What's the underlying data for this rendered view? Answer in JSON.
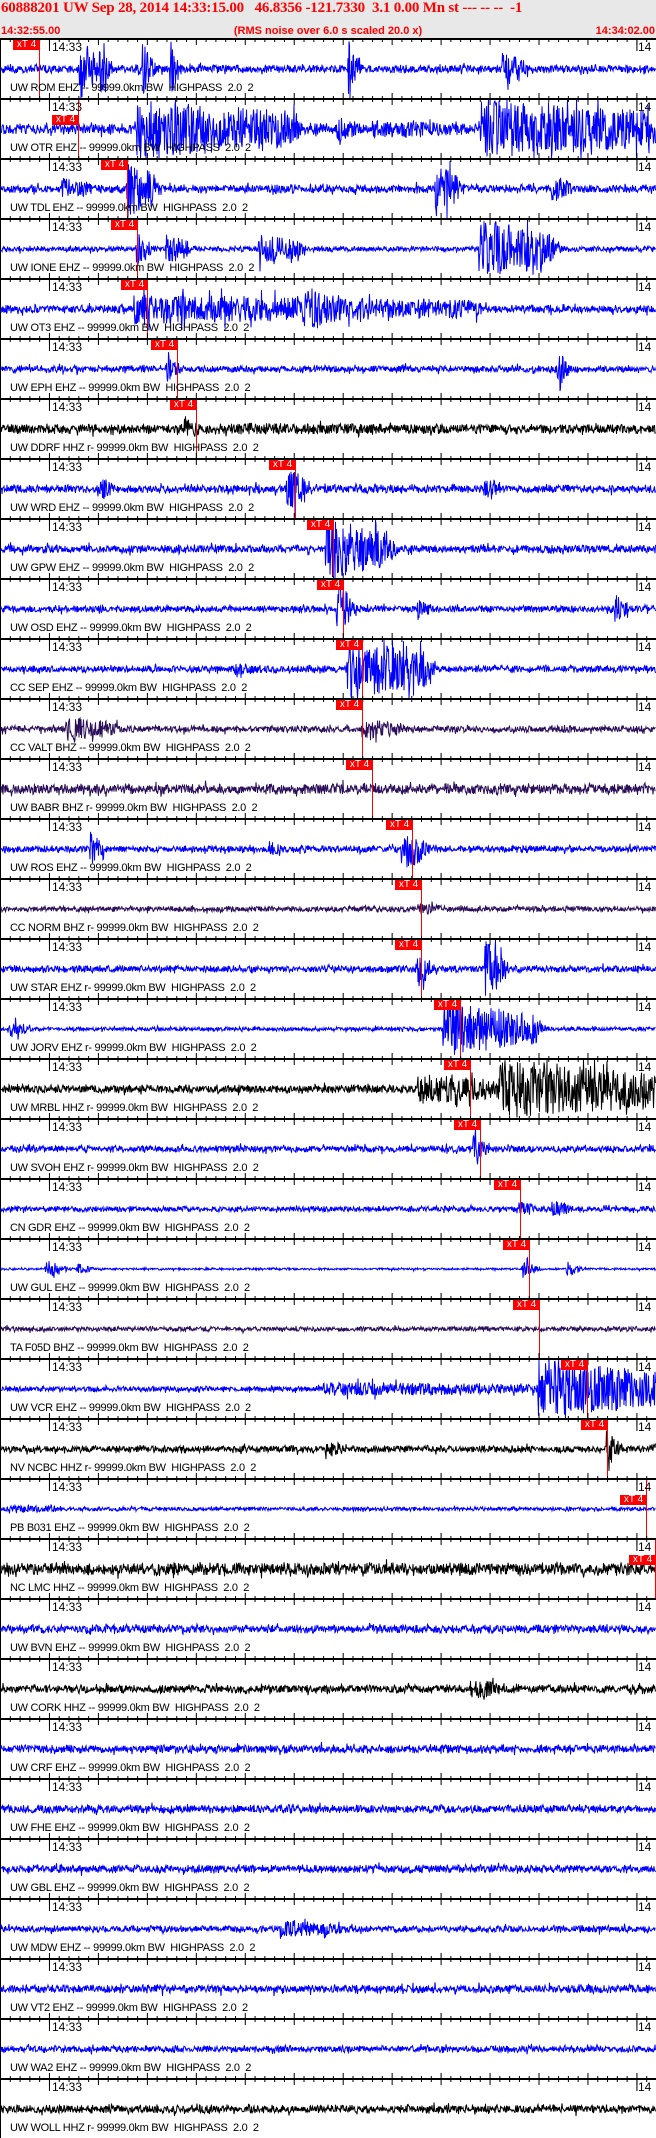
{
  "header": {
    "title": "60888201 UW Sep 28, 2014 14:33:15.00   46.8356 -121.7330  3.1 0.00 Mn st --- -- --  -1",
    "start_time": "14:32:55.00",
    "rms_note": "(RMS noise over 6.0 s scaled 20.0 x)",
    "end_time": "14:34:02.00"
  },
  "chart_data": {
    "type": "line",
    "xlim": [
      "14:32:55.00",
      "14:34:02.00"
    ],
    "tick_label": "14:33",
    "tick_label_right": "14",
    "pick_label": "xT 4",
    "grid": false,
    "colors": {
      "EHZ": "#0000ff",
      "HHZ": "#000000",
      "BHZ": "#2b0f5a",
      "pick": "#ff0000",
      "axis": "#000000"
    },
    "traces": [
      {
        "label": "UW ROM EHZ -- 99999.0km BW  HIGHPASS  2.0  2",
        "channel": "EHZ",
        "pick": "14:32:59.0",
        "noise": 0.12,
        "events": [
          [
            "14:33:03.2",
            1.5,
            1
          ],
          [
            "14:33:05.2",
            0.5,
            0.9
          ],
          [
            "14:33:09.6",
            0.6,
            1
          ],
          [
            "14:33:12.4",
            0.4,
            1
          ],
          [
            "14:33:30.6",
            0.4,
            1
          ],
          [
            "14:33:46.3",
            2,
            0.6
          ]
        ]
      },
      {
        "label": "UW OTR EHZ -- 99999.0km BW  HIGHPASS  2.0  2",
        "channel": "EHZ",
        "pick": "14:33:03.0",
        "noise": 0.15,
        "events": [
          [
            "14:33:09.0",
            16,
            1
          ],
          [
            "14:33:29.5",
            1.5,
            0.6
          ],
          [
            "14:33:33.0",
            10,
            0.3
          ],
          [
            "14:33:44.0",
            18,
            1
          ]
        ]
      },
      {
        "label": "UW TDL EHZ -- 99999.0km BW  HIGHPASS  2.0  2",
        "channel": "EHZ",
        "pick": "14:33:08.0",
        "noise": 0.12,
        "events": [
          [
            "14:33:01.4",
            2.6,
            0.4
          ],
          [
            "14:33:08.0",
            2.5,
            1
          ],
          [
            "14:33:39.5",
            2,
            0.9
          ],
          [
            "14:33:51.4",
            1.5,
            0.5
          ]
        ]
      },
      {
        "label": "UW IONE EHZ -- 99999.0km BW  HIGHPASS  2.0  2",
        "channel": "EHZ",
        "pick": "14:33:09.0",
        "noise": 0.08,
        "events": [
          [
            "14:33:09.0",
            1,
            0.6
          ],
          [
            "14:33:12.0",
            2,
            0.5
          ],
          [
            "14:33:21.5",
            4,
            0.5
          ],
          [
            "14:33:44.0",
            7,
            1
          ]
        ]
      },
      {
        "label": "UW OT3 EHZ -- 99999.0km BW  HIGHPASS  2.0  2",
        "channel": "EHZ",
        "pick": "14:33:10.0",
        "noise": 0.12,
        "events": [
          [
            "14:33:08.7",
            35,
            0.5
          ],
          [
            "14:33:26.0",
            3,
            0.8
          ]
        ]
      },
      {
        "label": "UW EPH EHZ -- 99999.0km BW  HIGHPASS  2.0  2",
        "channel": "EHZ",
        "pick": "14:33:13.1",
        "noise": 0.1,
        "events": [
          [
            "14:33:12.1",
            0.3,
            0.7
          ],
          [
            "14:33:52.0",
            0.3,
            1
          ]
        ]
      },
      {
        "label": "UW DDRF HHZ r- 99999.0km BW  HIGHPASS  2.0  2",
        "channel": "HHZ",
        "pick": "14:33:15.0",
        "noise": 0.14,
        "events": [
          [
            "14:33:13.8",
            1.5,
            0.35
          ],
          [
            "14:33:17.0",
            40,
            0.2
          ]
        ]
      },
      {
        "label": "UW WRD EHZ -- 99999.0km BW  HIGHPASS  2.0  2",
        "channel": "EHZ",
        "pick": "14:33:25.1",
        "noise": 0.12,
        "events": [
          [
            "14:33:05.3",
            1,
            0.4
          ],
          [
            "14:33:24.3",
            1.5,
            0.8
          ],
          [
            "14:33:44.5",
            1,
            0.5
          ]
        ]
      },
      {
        "label": "UW GPW EHZ -- 99999.0km BW  HIGHPASS  2.0  2",
        "channel": "EHZ",
        "pick": "14:33:29.0",
        "noise": 0.12,
        "events": [
          [
            "14:33:28.3",
            6.4,
            1
          ]
        ]
      },
      {
        "label": "UW OSD EHZ -- 99999.0km BW  HIGHPASS  2.0  2",
        "channel": "EHZ",
        "pick": "14:33:30.0",
        "noise": 0.1,
        "events": [
          [
            "14:33:29.4",
            1,
            1
          ],
          [
            "14:33:37.7",
            1,
            0.4
          ],
          [
            "14:33:57.8",
            1,
            0.5
          ]
        ]
      },
      {
        "label": "CC SEP EHZ -- 99999.0km BW  HIGHPASS  2.0  2",
        "channel": "EHZ",
        "pick": "14:33:32.0",
        "noise": 0.1,
        "events": [
          [
            "14:33:19.0",
            4,
            0.2
          ],
          [
            "14:33:30.5",
            8,
            1
          ]
        ]
      },
      {
        "label": "CC VALT BHZ -- 99999.0km BW  HIGHPASS  2.0  2",
        "channel": "BHZ",
        "pick": "14:33:32.0",
        "noise": 0.1,
        "events": [
          [
            "14:33:01.8",
            5,
            0.4
          ],
          [
            "14:33:32.0",
            4,
            0.35
          ]
        ]
      },
      {
        "label": "UW BABR BHZ r- 99999.0km BW  HIGHPASS  2.0  2",
        "channel": "BHZ",
        "pick": "14:33:33.0",
        "noise": 0.15,
        "events": []
      },
      {
        "label": "UW ROS EHZ -- 99999.0km BW  HIGHPASS  2.0  2",
        "channel": "EHZ",
        "pick": "14:33:37.1",
        "noise": 0.1,
        "events": [
          [
            "14:33:04.2",
            1,
            0.6
          ],
          [
            "14:33:22.4",
            1,
            0.3
          ],
          [
            "14:33:36.0",
            2,
            0.8
          ]
        ]
      },
      {
        "label": "CC NORM BHZ r- 99999.0km BW  HIGHPASS  2.0  2",
        "channel": "BHZ",
        "pick": "14:33:38.0",
        "noise": 0.08,
        "events": [
          [
            "14:33:37.7",
            3,
            0.2
          ]
        ]
      },
      {
        "label": "UW STAR EHZ r- 99999.0km BW  HIGHPASS  2.0  2",
        "channel": "EHZ",
        "pick": "14:33:38.0",
        "noise": 0.1,
        "events": [
          [
            "14:33:37.7",
            1,
            0.6
          ],
          [
            "14:33:44.6",
            1.5,
            1
          ]
        ]
      },
      {
        "label": "UW JORV EHZ r- 99999.0km BW  HIGHPASS  2.0  2",
        "channel": "EHZ",
        "pick": "14:33:42.0",
        "noise": 0.06,
        "events": [
          [
            "14:32:56.0",
            1.5,
            0.3
          ],
          [
            "14:33:40.3",
            9.4,
            0.9
          ]
        ]
      },
      {
        "label": "UW MRBL HHZ r- 99999.0km BW  HIGHPASS  2.0  2",
        "channel": "HHZ",
        "pick": "14:33:43.0",
        "noise": 0.12,
        "events": [
          [
            "14:33:37.7",
            9,
            0.5
          ],
          [
            "14:33:46.0",
            16,
            1
          ]
        ]
      },
      {
        "label": "UW SVOH EHZ r- 99999.0km BW  HIGHPASS  2.0  2",
        "channel": "EHZ",
        "pick": "14:33:44.0",
        "noise": 0.1,
        "events": [
          [
            "14:33:43.4",
            0.5,
            0.8
          ]
        ]
      },
      {
        "label": "CN GDR EHZ -- 99999.0km BW  HIGHPASS  2.0  2",
        "channel": "EHZ",
        "pick": "14:33:48.1",
        "noise": 0.08,
        "events": [
          [
            "14:33:48.0",
            2,
            0.25
          ],
          [
            "14:33:51.4",
            1.5,
            0.3
          ]
        ]
      },
      {
        "label": "UW GUL EHZ -- 99999.0km BW  HIGHPASS  2.0  2",
        "channel": "EHZ",
        "pick": "14:33:49.0",
        "noise": 0.03,
        "events": [
          [
            "14:32:59.7",
            1.5,
            0.3
          ],
          [
            "14:33:02.9",
            1,
            0.2
          ],
          [
            "14:33:48.4",
            1,
            0.3
          ],
          [
            "14:33:52.9",
            1,
            0.25
          ]
        ]
      },
      {
        "label": "TA F05D BHZ -- 99999.0km BW  HIGHPASS  2.0  2",
        "channel": "BHZ",
        "pick": "14:33:50.0",
        "noise": 0.07,
        "events": []
      },
      {
        "label": "UW VCR EHZ -- 99999.0km BW  HIGHPASS  2.0  2",
        "channel": "EHZ",
        "pick": "14:33:55.0",
        "noise": 0.08,
        "events": [
          [
            "14:33:28.0",
            22,
            0.25
          ],
          [
            "14:33:50.0",
            12,
            1
          ]
        ]
      },
      {
        "label": "NV NCBC HHZ r- 99999.0km BW  HIGHPASS  2.0  2",
        "channel": "HHZ",
        "pick": "14:33:57.0",
        "noise": 0.1,
        "events": [
          [
            "14:33:28.3",
            1.5,
            0.3
          ],
          [
            "14:33:57.0",
            0.3,
            1
          ]
        ]
      },
      {
        "label": "PB B031 EHZ -- 99999.0km BW  HIGHPASS  2.0  2",
        "channel": "EHZ",
        "pick": "14:34:01.0",
        "noise": 0.06,
        "events": [
          [
            "14:32:56.0",
            5,
            0.15
          ]
        ]
      },
      {
        "label": "NC LMC HHZ -- 99999.0km BW  HIGHPASS  2.0  2",
        "channel": "HHZ",
        "pick": "14:34:01.9",
        "noise": 0.18,
        "events": []
      },
      {
        "label": "UW BVN EHZ -- 99999.0km BW  HIGHPASS  2.0  2",
        "channel": "EHZ",
        "pick": null,
        "noise": 0.12,
        "events": []
      },
      {
        "label": "UW CORK HHZ -- 99999.0km BW  HIGHPASS  2.0  2",
        "channel": "HHZ",
        "pick": null,
        "noise": 0.12,
        "events": [
          [
            "14:33:43.0",
            3,
            0.35
          ]
        ]
      },
      {
        "label": "UW CRF EHZ -- 99999.0km BW  HIGHPASS  2.0  2",
        "channel": "EHZ",
        "pick": null,
        "noise": 0.12,
        "events": []
      },
      {
        "label": "UW FHE EHZ -- 99999.0km BW  HIGHPASS  2.0  2",
        "channel": "EHZ",
        "pick": null,
        "noise": 0.12,
        "events": []
      },
      {
        "label": "UW GBL EHZ -- 99999.0km BW  HIGHPASS  2.0  2",
        "channel": "EHZ",
        "pick": null,
        "noise": 0.12,
        "events": []
      },
      {
        "label": "UW MDW EHZ -- 99999.0km BW  HIGHPASS  2.0  2",
        "channel": "EHZ",
        "pick": null,
        "noise": 0.1,
        "events": [
          [
            "14:33:23.6",
            6,
            0.3
          ]
        ]
      },
      {
        "label": "UW VT2 EHZ -- 99999.0km BW  HIGHPASS  2.0  2",
        "channel": "EHZ",
        "pick": null,
        "noise": 0.12,
        "events": []
      },
      {
        "label": "UW WA2 EHZ -- 99999.0km BW  HIGHPASS  2.0  2",
        "channel": "EHZ",
        "pick": null,
        "noise": 0.1,
        "events": []
      },
      {
        "label": "UW WOLL HHZ r- 99999.0km BW  HIGHPASS  2.0  2",
        "channel": "HHZ",
        "pick": null,
        "noise": 0.12,
        "events": []
      }
    ]
  }
}
